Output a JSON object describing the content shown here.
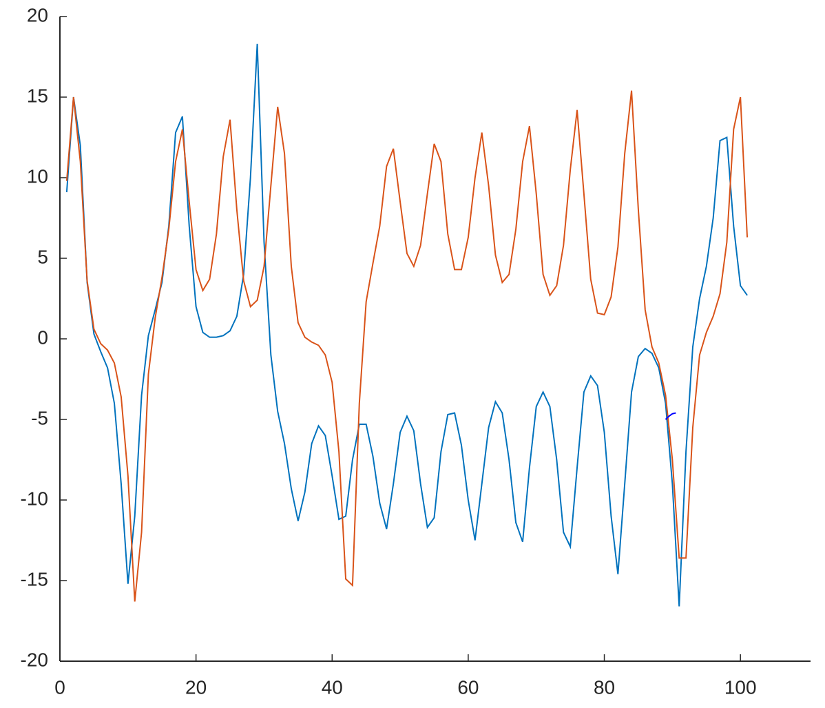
{
  "chart_data": {
    "type": "line",
    "xlim": [
      0,
      110
    ],
    "xticks": [
      0,
      20,
      40,
      60,
      80,
      100
    ],
    "ylim": [
      -20,
      20
    ],
    "yticks": [
      -20,
      -15,
      -10,
      -5,
      0,
      5,
      10,
      15,
      20
    ],
    "series": [
      {
        "color": "#0072bd",
        "x": [
          1,
          2,
          3,
          4,
          5,
          6,
          7,
          8,
          9,
          10,
          11,
          12,
          13,
          14,
          15,
          16,
          17,
          18,
          19,
          20,
          21,
          22,
          23,
          24,
          25,
          26,
          27,
          28,
          29,
          30,
          31,
          32,
          33,
          34,
          35,
          36,
          37,
          38,
          39,
          40,
          41,
          42,
          43,
          44,
          45,
          46,
          47,
          48,
          49,
          50,
          51,
          52,
          53,
          54,
          55,
          56,
          57,
          58,
          59,
          60,
          61,
          62,
          63,
          64,
          65,
          66,
          67,
          68,
          69,
          70,
          71,
          72,
          73,
          74,
          75,
          76,
          77,
          78,
          79,
          80,
          81,
          82,
          83,
          84,
          85,
          86,
          87,
          88,
          89,
          90,
          91,
          92,
          93,
          94,
          95,
          96,
          97,
          98,
          99,
          100,
          101
        ],
        "values": [
          9.1,
          15,
          12,
          3.5,
          0.3,
          -0.8,
          -1.8,
          -4,
          -9,
          -15.2,
          -11,
          -3.5,
          0.2,
          1.8,
          3.5,
          7,
          12.8,
          13.8,
          7,
          2,
          0.4,
          0.1,
          0.1,
          0.2,
          0.5,
          1.4,
          4,
          10,
          18.3,
          6,
          -1,
          -4.5,
          -6.5,
          -9.3,
          -11.3,
          -9.5,
          -6.5,
          -5.4,
          -6,
          -8.5,
          -11.2,
          -11,
          -7.5,
          -5.3,
          -5.3,
          -7.3,
          -10.2,
          -11.8,
          -9,
          -5.8,
          -4.8,
          -5.7,
          -9,
          -11.7,
          -11.1,
          -7,
          -4.7,
          -4.6,
          -6.6,
          -10,
          -12.5,
          -9,
          -5.5,
          -3.9,
          -4.6,
          -7.5,
          -11.4,
          -12.6,
          -8,
          -4.2,
          -3.3,
          -4.2,
          -7.5,
          -12,
          -12.9,
          -8,
          -3.3,
          -2.3,
          -2.9,
          -5.8,
          -11,
          -14.6,
          -9,
          -3.3,
          -1.1,
          -0.6,
          -0.9,
          -1.8,
          -4,
          -9,
          -16.6,
          -7,
          -0.5,
          2.5,
          4.5,
          7.5,
          12.3,
          12.5,
          7,
          3.3,
          2.7
        ]
      },
      {
        "color": "#d95319",
        "x": [
          1,
          2,
          3,
          4,
          5,
          6,
          7,
          8,
          9,
          10,
          11,
          12,
          13,
          14,
          15,
          16,
          17,
          18,
          19,
          20,
          21,
          22,
          23,
          24,
          25,
          26,
          27,
          28,
          29,
          30,
          31,
          32,
          33,
          34,
          35,
          36,
          37,
          38,
          39,
          40,
          41,
          42,
          43,
          44,
          45,
          46,
          47,
          48,
          49,
          50,
          51,
          52,
          53,
          54,
          55,
          56,
          57,
          58,
          59,
          60,
          61,
          62,
          63,
          64,
          65,
          66,
          67,
          68,
          69,
          70,
          71,
          72,
          73,
          74,
          75,
          76,
          77,
          78,
          79,
          80,
          81,
          82,
          83,
          84,
          85,
          86,
          87,
          88,
          89,
          90,
          91,
          92,
          93,
          94,
          95,
          96,
          97,
          98,
          99,
          100,
          101
        ],
        "values": [
          9.8,
          15,
          11,
          3.6,
          0.6,
          -0.3,
          -0.7,
          -1.5,
          -3.6,
          -8.5,
          -16.3,
          -12,
          -2.2,
          1.3,
          3.8,
          6.8,
          11,
          13,
          8.5,
          4.3,
          3,
          3.7,
          6.5,
          11.3,
          13.6,
          8,
          3.6,
          2,
          2.4,
          4.5,
          9.5,
          14.4,
          11.5,
          4.5,
          1,
          0.1,
          -0.2,
          -0.4,
          -1,
          -2.7,
          -7,
          -14.9,
          -15.3,
          -4,
          2.3,
          4.7,
          7,
          10.7,
          11.8,
          8.5,
          5.3,
          4.5,
          5.8,
          9,
          12.1,
          11,
          6.5,
          4.3,
          4.3,
          6.3,
          10,
          12.8,
          9.5,
          5.2,
          3.5,
          4,
          6.8,
          11,
          13.2,
          9,
          4,
          2.7,
          3.3,
          5.8,
          10.5,
          14.2,
          9,
          3.7,
          1.6,
          1.5,
          2.6,
          5.7,
          11.5,
          15.4,
          8,
          1.8,
          -0.5,
          -1.5,
          -3.5,
          -7.5,
          -13.6,
          -13.6,
          -5.5,
          -1,
          0.4,
          1.4,
          2.8,
          6,
          13,
          15,
          6.3
        ]
      },
      {
        "color": "#0000ff",
        "x": [
          89,
          89.5,
          90,
          90.5
        ],
        "values": [
          -5,
          -4.8,
          -4.65,
          -4.6
        ]
      }
    ]
  }
}
